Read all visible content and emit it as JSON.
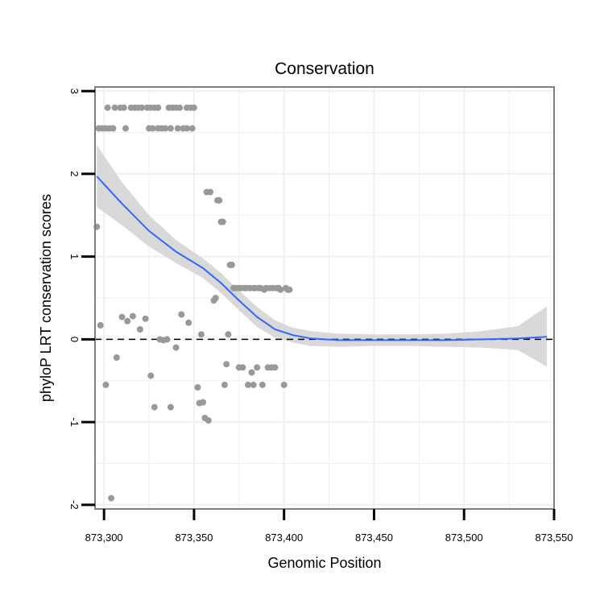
{
  "chart_data": {
    "type": "scatter",
    "title": "Conservation",
    "xlabel": "Genomic Position",
    "ylabel": "phyloP LRT conservation scores",
    "xlim": [
      873295,
      873550
    ],
    "ylim": [
      -2.05,
      3.05
    ],
    "x_ticks": [
      873300,
      873350,
      873400,
      873450,
      873500,
      873550
    ],
    "x_tick_labels": [
      "873,300",
      "873,350",
      "873,400",
      "873,450",
      "873,500",
      "873,550"
    ],
    "y_ticks": [
      -2,
      -1,
      0,
      1,
      2,
      3
    ],
    "y_tick_labels": [
      "-2",
      "-1",
      "0",
      "1",
      "2",
      "3"
    ],
    "grid": true,
    "reference_line": {
      "y": 0,
      "style": "dashed"
    },
    "colors": {
      "points": "#999999",
      "smooth": "#3366ff",
      "ribbon": "#d9d9d9",
      "grid": "#f0f0f0",
      "frame": "#7f7f7f",
      "reference": "#000000"
    },
    "points": [
      [
        873296,
        1.36
      ],
      [
        873297,
        2.55
      ],
      [
        873298,
        0.17
      ],
      [
        873299,
        2.55
      ],
      [
        873301,
        2.55
      ],
      [
        873301,
        -0.55
      ],
      [
        873302,
        2.8
      ],
      [
        873303,
        2.55
      ],
      [
        873304,
        -1.92
      ],
      [
        873305,
        2.55
      ],
      [
        873306,
        2.8
      ],
      [
        873307,
        -0.22
      ],
      [
        873309,
        2.8
      ],
      [
        873310,
        0.27
      ],
      [
        873311,
        2.8
      ],
      [
        873312,
        2.55
      ],
      [
        873313,
        0.22
      ],
      [
        873315,
        2.8
      ],
      [
        873316,
        0.28
      ],
      [
        873317,
        2.8
      ],
      [
        873319,
        2.8
      ],
      [
        873320,
        0.12
      ],
      [
        873321,
        2.8
      ],
      [
        873323,
        0.25
      ],
      [
        873324,
        2.8
      ],
      [
        873325,
        2.55
      ],
      [
        873326,
        2.8
      ],
      [
        873326,
        -0.44
      ],
      [
        873327,
        2.55
      ],
      [
        873328,
        2.8
      ],
      [
        873328,
        -0.82
      ],
      [
        873330,
        2.8
      ],
      [
        873330,
        2.55
      ],
      [
        873331,
        0.0
      ],
      [
        873332,
        2.55
      ],
      [
        873333,
        -0.01
      ],
      [
        873334,
        2.55
      ],
      [
        873335,
        0.0
      ],
      [
        873336,
        2.8
      ],
      [
        873337,
        2.55
      ],
      [
        873337,
        -0.82
      ],
      [
        873338,
        2.8
      ],
      [
        873340,
        2.8
      ],
      [
        873340,
        -0.1
      ],
      [
        873341,
        2.55
      ],
      [
        873342,
        2.8
      ],
      [
        873343,
        0.3
      ],
      [
        873344,
        2.55
      ],
      [
        873346,
        2.8
      ],
      [
        873346,
        2.55
      ],
      [
        873347,
        0.2
      ],
      [
        873348,
        2.8
      ],
      [
        873349,
        2.55
      ],
      [
        873350,
        2.8
      ],
      [
        873352,
        -0.58
      ],
      [
        873353,
        -0.77
      ],
      [
        873354,
        0.06
      ],
      [
        873355,
        -0.76
      ],
      [
        873356,
        -0.95
      ],
      [
        873357,
        1.78
      ],
      [
        873358,
        -0.98
      ],
      [
        873359,
        1.78
      ],
      [
        873361,
        0.47
      ],
      [
        873362,
        0.5
      ],
      [
        873363,
        1.68
      ],
      [
        873364,
        1.68
      ],
      [
        873365,
        1.42
      ],
      [
        873366,
        1.42
      ],
      [
        873367,
        -0.55
      ],
      [
        873368,
        -0.3
      ],
      [
        873369,
        0.06
      ],
      [
        873370,
        0.9
      ],
      [
        873371,
        0.9
      ],
      [
        873372,
        0.62
      ],
      [
        873373,
        0.62
      ],
      [
        873375,
        -0.34
      ],
      [
        873375,
        0.62
      ],
      [
        873376,
        0.62
      ],
      [
        873377,
        -0.34
      ],
      [
        873378,
        0.62
      ],
      [
        873379,
        0.62
      ],
      [
        873380,
        -0.55
      ],
      [
        873381,
        0.62
      ],
      [
        873382,
        -0.4
      ],
      [
        873383,
        0.62
      ],
      [
        873383,
        -0.55
      ],
      [
        873384,
        0.62
      ],
      [
        873385,
        -0.34
      ],
      [
        873386,
        0.62
      ],
      [
        873387,
        0.62
      ],
      [
        873388,
        -0.55
      ],
      [
        873389,
        0.6
      ],
      [
        873390,
        0.62
      ],
      [
        873391,
        -0.34
      ],
      [
        873392,
        0.62
      ],
      [
        873393,
        -0.34
      ],
      [
        873394,
        0.62
      ],
      [
        873395,
        -0.34
      ],
      [
        873396,
        0.62
      ],
      [
        873397,
        0.62
      ],
      [
        873398,
        0.6
      ],
      [
        873400,
        -0.55
      ],
      [
        873401,
        0.62
      ],
      [
        873402,
        0.6
      ],
      [
        873403,
        0.6
      ]
    ],
    "smooth": {
      "x": [
        873296,
        873310,
        873325,
        873340,
        873355,
        873365,
        873375,
        873385,
        873395,
        873405,
        873415,
        873430,
        873450,
        873470,
        873490,
        873510,
        873530,
        873546
      ],
      "y": [
        1.97,
        1.64,
        1.31,
        1.06,
        0.86,
        0.68,
        0.47,
        0.27,
        0.12,
        0.05,
        0.01,
        -0.01,
        -0.01,
        -0.01,
        -0.01,
        0.0,
        0.01,
        0.03
      ],
      "lower": [
        1.6,
        1.38,
        1.12,
        0.92,
        0.74,
        0.56,
        0.35,
        0.15,
        0.02,
        -0.04,
        -0.08,
        -0.09,
        -0.08,
        -0.08,
        -0.09,
        -0.1,
        -0.13,
        -0.33
      ],
      "upper": [
        2.35,
        1.9,
        1.5,
        1.2,
        0.98,
        0.8,
        0.59,
        0.39,
        0.23,
        0.14,
        0.1,
        0.07,
        0.06,
        0.06,
        0.07,
        0.1,
        0.16,
        0.4
      ]
    }
  }
}
